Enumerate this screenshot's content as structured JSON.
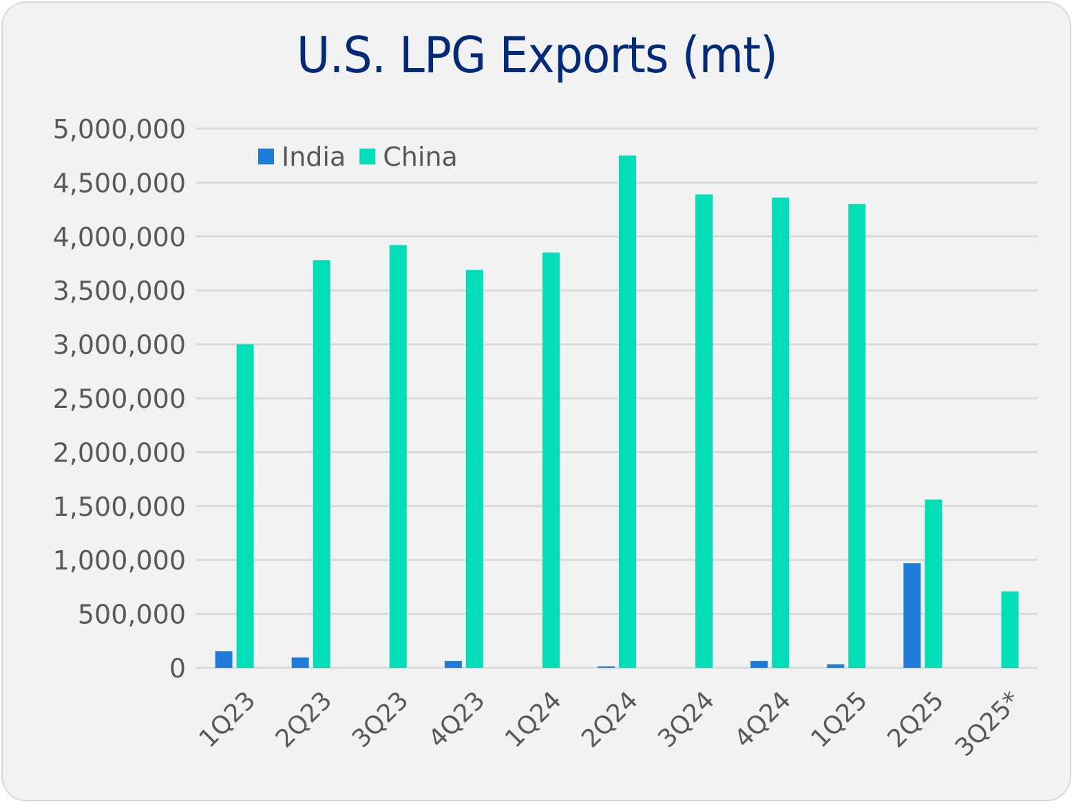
{
  "chart_data": {
    "type": "bar",
    "title": "U.S. LPG Exports (mt)",
    "xlabel": "",
    "ylabel": "",
    "ylim": [
      0,
      5000000
    ],
    "yticks": [
      0,
      500000,
      1000000,
      1500000,
      2000000,
      2500000,
      3000000,
      3500000,
      4000000,
      4500000,
      5000000
    ],
    "ytick_labels": [
      "0",
      "500,000",
      "1,000,000",
      "1,500,000",
      "2,000,000",
      "2,500,000",
      "3,000,000",
      "3,500,000",
      "4,000,000",
      "4,500,000",
      "5,000,000"
    ],
    "grid": true,
    "legend_position": "top-left",
    "categories": [
      "1Q23",
      "2Q23",
      "3Q23",
      "4Q23",
      "1Q24",
      "2Q24",
      "3Q24",
      "4Q24",
      "1Q25",
      "2Q25",
      "3Q25*"
    ],
    "series": [
      {
        "name": "India",
        "color": "#1f7bd8",
        "values": [
          153000,
          96000,
          0,
          64000,
          0,
          13000,
          0,
          64000,
          32000,
          970000,
          0
        ]
      },
      {
        "name": "China",
        "color": "#00deb8",
        "values": [
          3000000,
          3780000,
          3920000,
          3690000,
          3850000,
          4750000,
          4390000,
          4360000,
          4300000,
          1560000,
          708000
        ]
      }
    ]
  }
}
